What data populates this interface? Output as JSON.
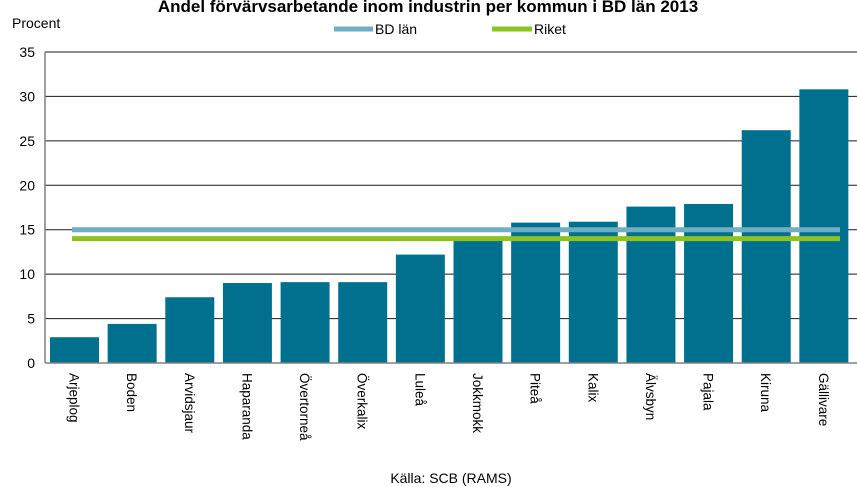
{
  "chart_data": {
    "type": "bar",
    "title": "Andel förvärvsarbetande  inom industrin per kommun i BD län 2013",
    "ylabel": "Procent",
    "source": "Källa: SCB (RAMS)",
    "ylim": [
      0,
      35
    ],
    "yticks": [
      0,
      5,
      10,
      15,
      20,
      25,
      30,
      35
    ],
    "grid": true,
    "legend_position": "top-center",
    "categories": [
      "Arjeplog",
      "Boden",
      "Arvidsjaur",
      "Haparanda",
      "Övertorneå",
      "Överkalix",
      "Luleå",
      "Jokkmokk",
      "Piteå",
      "Kalix",
      "Älvsbyn",
      "Pajala",
      "Kiruna",
      "Gällivare"
    ],
    "values": [
      2.9,
      4.4,
      7.4,
      9.0,
      9.1,
      9.1,
      12.2,
      14.0,
      15.8,
      15.9,
      17.6,
      17.9,
      26.2,
      30.8
    ],
    "bar_color": "#00708f",
    "reference_lines": [
      {
        "name": "BD län",
        "value": 15.0,
        "color": "#70aec4"
      },
      {
        "name": "Riket",
        "value": 14.0,
        "color": "#8dc21f"
      }
    ]
  }
}
